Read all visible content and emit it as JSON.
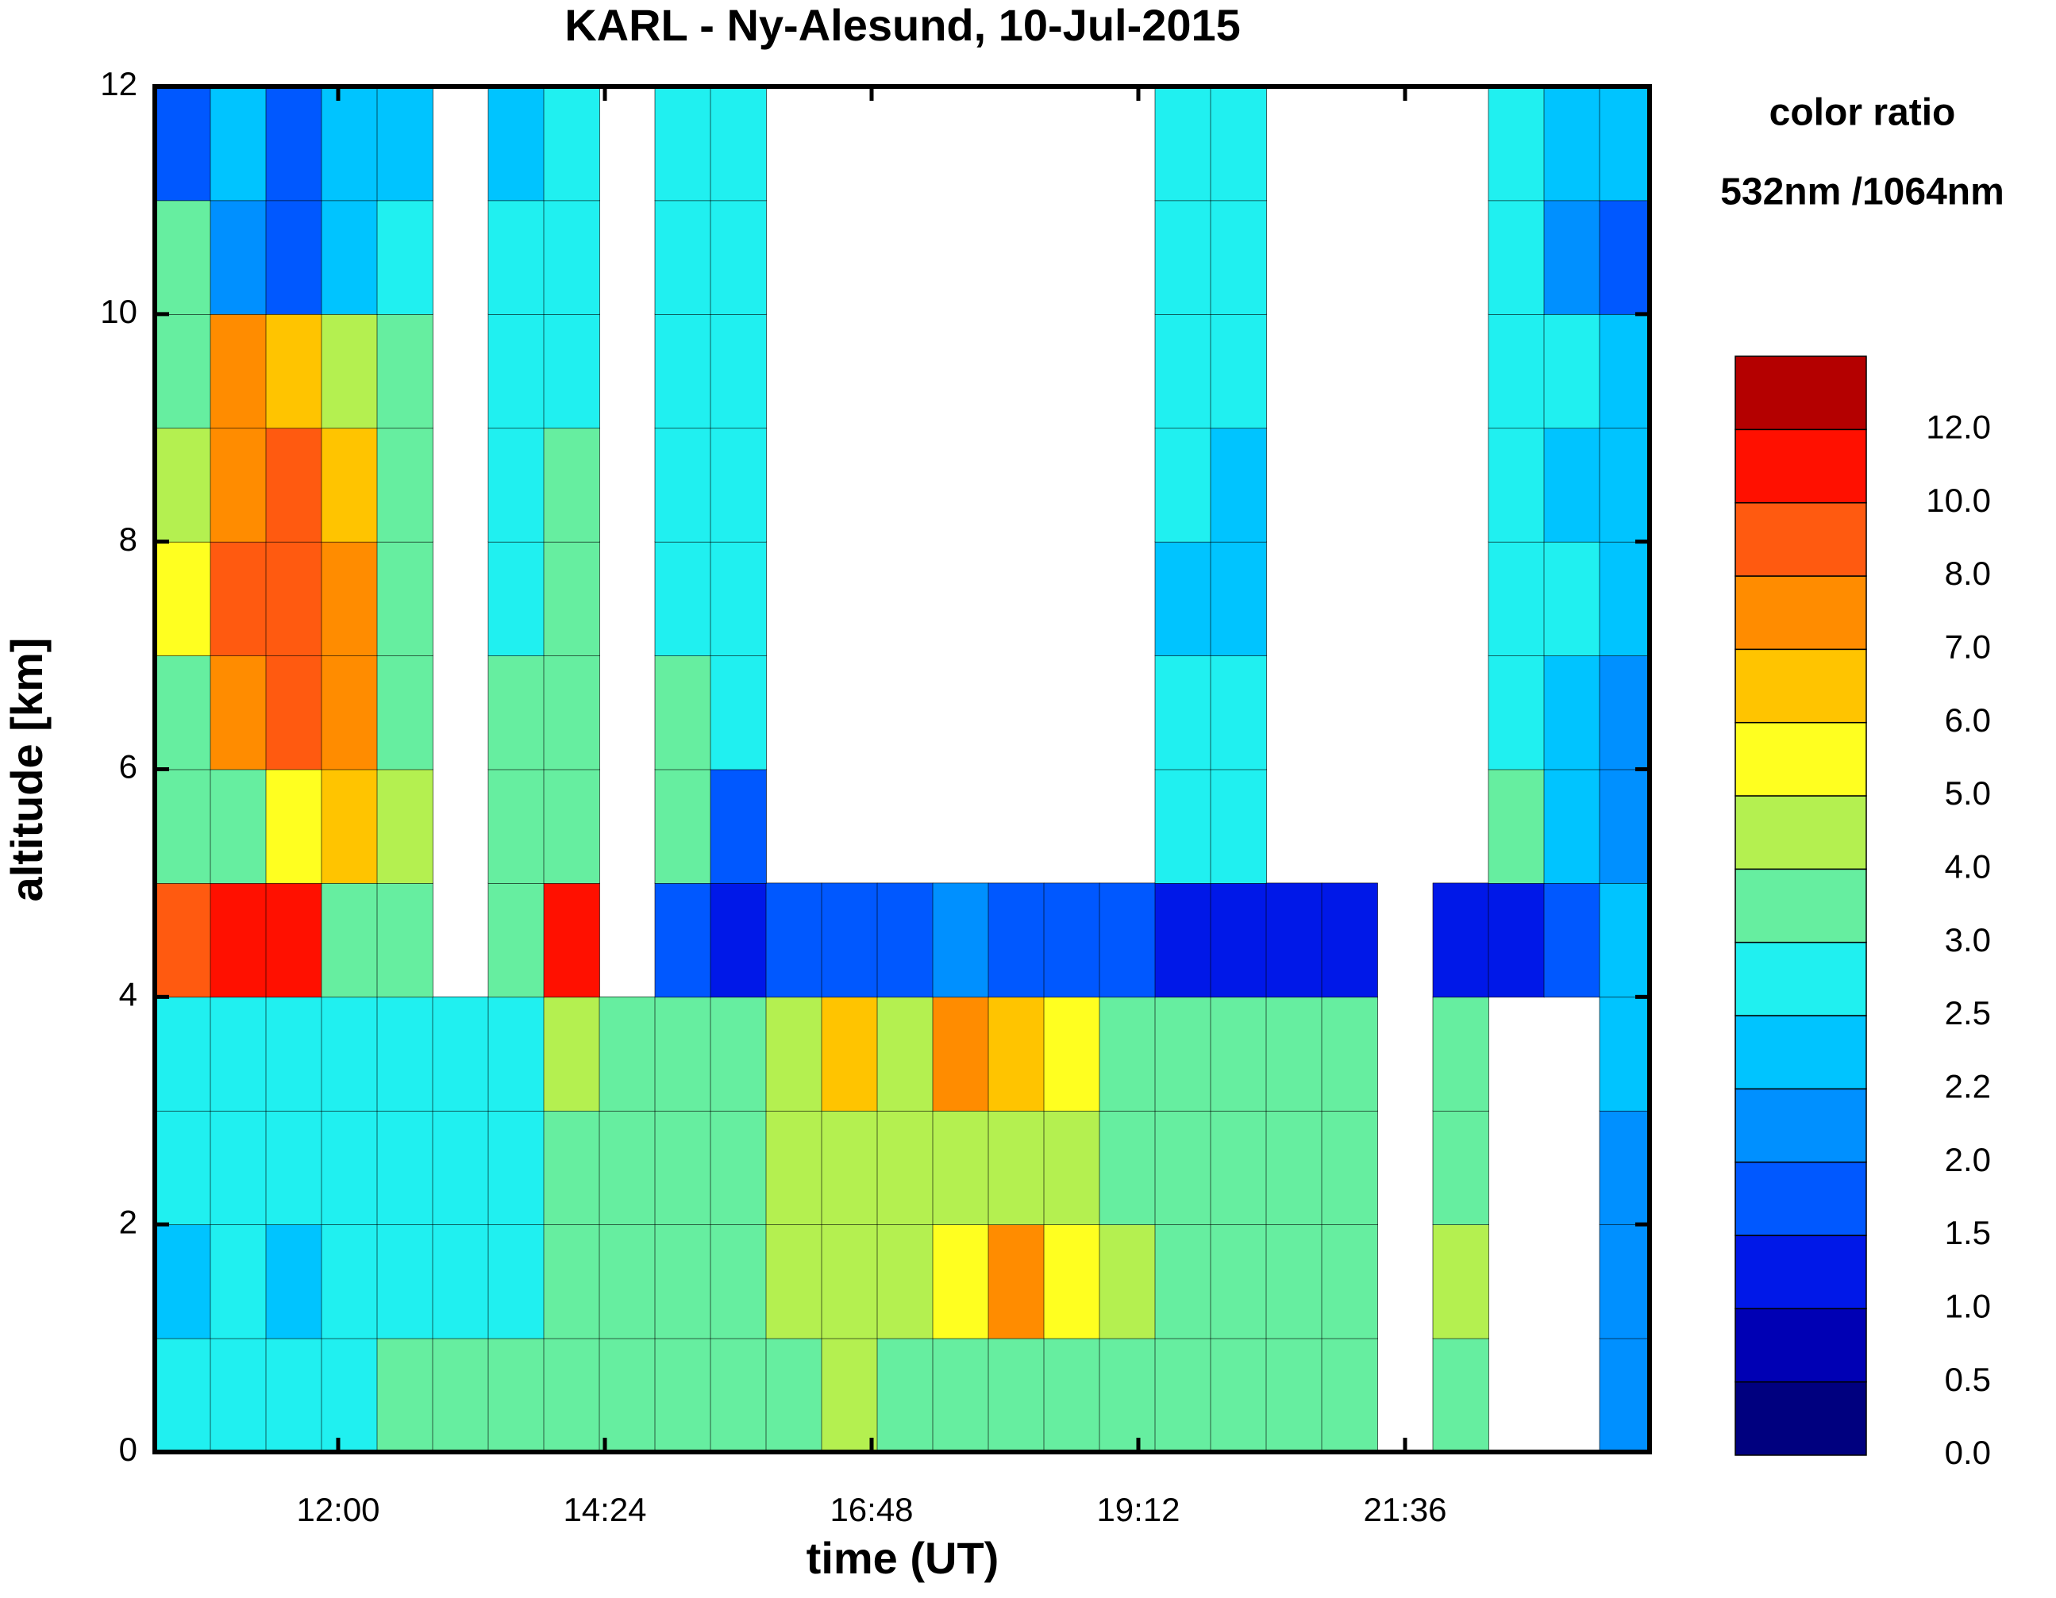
{
  "chart_data": {
    "type": "heatmap",
    "title": "KARL - Ny-Alesund, 10-Jul-2015",
    "xlabel": "time (UT)",
    "ylabel": "altitude [km]",
    "colorbar_title": [
      "color ratio",
      "532nm /1064nm"
    ],
    "xlim": [
      10.35,
      23.8
    ],
    "xticks": [
      {
        "value": 12,
        "label": "12:00"
      },
      {
        "value": 14.4,
        "label": "14:24"
      },
      {
        "value": 16.8,
        "label": "16:48"
      },
      {
        "value": 19.2,
        "label": "19:12"
      },
      {
        "value": 21.6,
        "label": "21:36"
      }
    ],
    "ylim": [
      0,
      12
    ],
    "yticks": [
      0,
      2,
      4,
      6,
      8,
      10,
      12
    ],
    "cell_width": 0.5,
    "cell_height": 1,
    "x": [
      10.6,
      11.1,
      11.6,
      12.1,
      12.6,
      13.1,
      13.6,
      14.1,
      14.6,
      15.1,
      15.6,
      16.1,
      16.6,
      17.1,
      17.6,
      18.1,
      18.6,
      19.1,
      19.6,
      20.1,
      20.6,
      21.1,
      21.6,
      22.1,
      22.6,
      23.1,
      23.6
    ],
    "y": [
      0.5,
      1.5,
      2.5,
      3.5,
      4.5,
      5.5,
      6.5,
      7.5,
      8.5,
      9.5,
      10.5,
      11.5
    ],
    "z": [
      [
        2.8,
        2.8,
        2.6,
        2.8,
        3.2,
        3.2,
        3.2,
        3.5,
        3.5,
        3.5,
        3.5,
        3.5,
        4.2,
        3.5,
        3.5,
        3.5,
        3.5,
        3.5,
        3.5,
        3.5,
        3.5,
        3.5,
        null,
        3.5,
        null,
        null,
        2.0
      ],
      [
        2.4,
        2.7,
        2.4,
        2.8,
        2.8,
        2.8,
        2.8,
        3.5,
        3.5,
        3.5,
        3.5,
        4.5,
        4.5,
        4.5,
        5.5,
        7.5,
        5.0,
        4.5,
        3.5,
        3.5,
        3.5,
        3.5,
        null,
        4.5,
        null,
        null,
        2.0
      ],
      [
        2.7,
        2.8,
        2.8,
        2.8,
        2.8,
        2.8,
        2.8,
        3.5,
        3.5,
        3.5,
        3.5,
        4.5,
        4.5,
        4.5,
        4.5,
        4.5,
        4.5,
        3.5,
        3.5,
        3.5,
        3.5,
        3.5,
        null,
        3.5,
        null,
        null,
        2.1
      ],
      [
        2.8,
        2.8,
        2.8,
        2.8,
        2.8,
        2.8,
        2.8,
        4.5,
        3.5,
        3.5,
        3.5,
        4.5,
        6.5,
        4.5,
        7.5,
        6.5,
        5.5,
        3.5,
        3.5,
        3.5,
        3.5,
        3.5,
        null,
        3.5,
        null,
        null,
        2.3
      ],
      [
        8.5,
        10.5,
        11,
        3.5,
        3.5,
        null,
        3.5,
        10.5,
        null,
        1.8,
        1.3,
        1.8,
        1.8,
        1.8,
        2.1,
        1.8,
        1.8,
        1.8,
        1.2,
        1.2,
        1.3,
        1.3,
        null,
        1.3,
        1.0,
        1.8,
        2.4
      ],
      [
        3.5,
        3.5,
        5.5,
        6.5,
        4.5,
        null,
        3.2,
        3.0,
        null,
        3.2,
        1.5,
        null,
        null,
        null,
        null,
        null,
        null,
        null,
        2.6,
        2.6,
        null,
        null,
        null,
        null,
        3.5,
        2.2,
        2.0
      ],
      [
        3.5,
        7.5,
        8.0,
        7.0,
        3.5,
        null,
        3.2,
        3.5,
        null,
        3.0,
        2.8,
        null,
        null,
        null,
        null,
        null,
        null,
        null,
        2.5,
        2.5,
        null,
        null,
        null,
        null,
        2.8,
        2.3,
        2.0
      ],
      [
        5.5,
        8.5,
        8.5,
        7.5,
        3.5,
        null,
        2.8,
        3.5,
        null,
        2.8,
        2.6,
        null,
        null,
        null,
        null,
        null,
        null,
        null,
        2.4,
        2.4,
        null,
        null,
        null,
        null,
        2.5,
        2.6,
        2.2
      ],
      [
        4.5,
        7.5,
        8.5,
        6.5,
        3.5,
        null,
        2.8,
        3.0,
        null,
        2.6,
        2.6,
        null,
        null,
        null,
        null,
        null,
        null,
        null,
        2.5,
        2.4,
        null,
        null,
        null,
        null,
        2.6,
        2.4,
        2.2
      ],
      [
        3.5,
        7.0,
        6.5,
        4.5,
        3.2,
        null,
        2.8,
        2.6,
        null,
        2.6,
        2.6,
        null,
        null,
        null,
        null,
        null,
        null,
        null,
        2.5,
        2.5,
        null,
        null,
        null,
        null,
        2.6,
        2.5,
        2.2
      ],
      [
        3.2,
        2.1,
        1.6,
        2.2,
        2.6,
        null,
        2.6,
        2.6,
        null,
        2.6,
        2.6,
        null,
        null,
        null,
        null,
        null,
        null,
        null,
        2.5,
        2.5,
        null,
        null,
        null,
        null,
        2.8,
        2.1,
        1.8
      ],
      [
        1.8,
        2.2,
        1.8,
        2.3,
        2.4,
        null,
        2.4,
        2.5,
        null,
        2.5,
        2.5,
        null,
        null,
        null,
        null,
        null,
        null,
        null,
        2.5,
        2.5,
        null,
        null,
        null,
        null,
        2.8,
        2.2,
        2.2
      ]
    ],
    "levels": [
      {
        "value": 0,
        "label": "0.0"
      },
      {
        "value": 0.5,
        "label": "0.5"
      },
      {
        "value": 1,
        "label": "1.0"
      },
      {
        "value": 1.5,
        "label": "1.5"
      },
      {
        "value": 2,
        "label": "2.0"
      },
      {
        "value": 2.2,
        "label": "2.2"
      },
      {
        "value": 2.5,
        "label": "2.5"
      },
      {
        "value": 3,
        "label": "3.0"
      },
      {
        "value": 4,
        "label": "4.0"
      },
      {
        "value": 5,
        "label": "5.0"
      },
      {
        "value": 6,
        "label": "6.0"
      },
      {
        "value": 7,
        "label": "7.0"
      },
      {
        "value": 8,
        "label": "8.0"
      },
      {
        "value": 10,
        "label": "10.0"
      },
      {
        "value": 12,
        "label": "12.0"
      }
    ],
    "colors": [
      "#00007f",
      "#0000b4",
      "#0018e8",
      "#0058ff",
      "#0090ff",
      "#00c4ff",
      "#20f0f0",
      "#66eea0",
      "#b4f050",
      "#ffff20",
      "#ffc400",
      "#ff8c00",
      "#ff5a10",
      "#ff1000",
      "#b40000"
    ]
  }
}
